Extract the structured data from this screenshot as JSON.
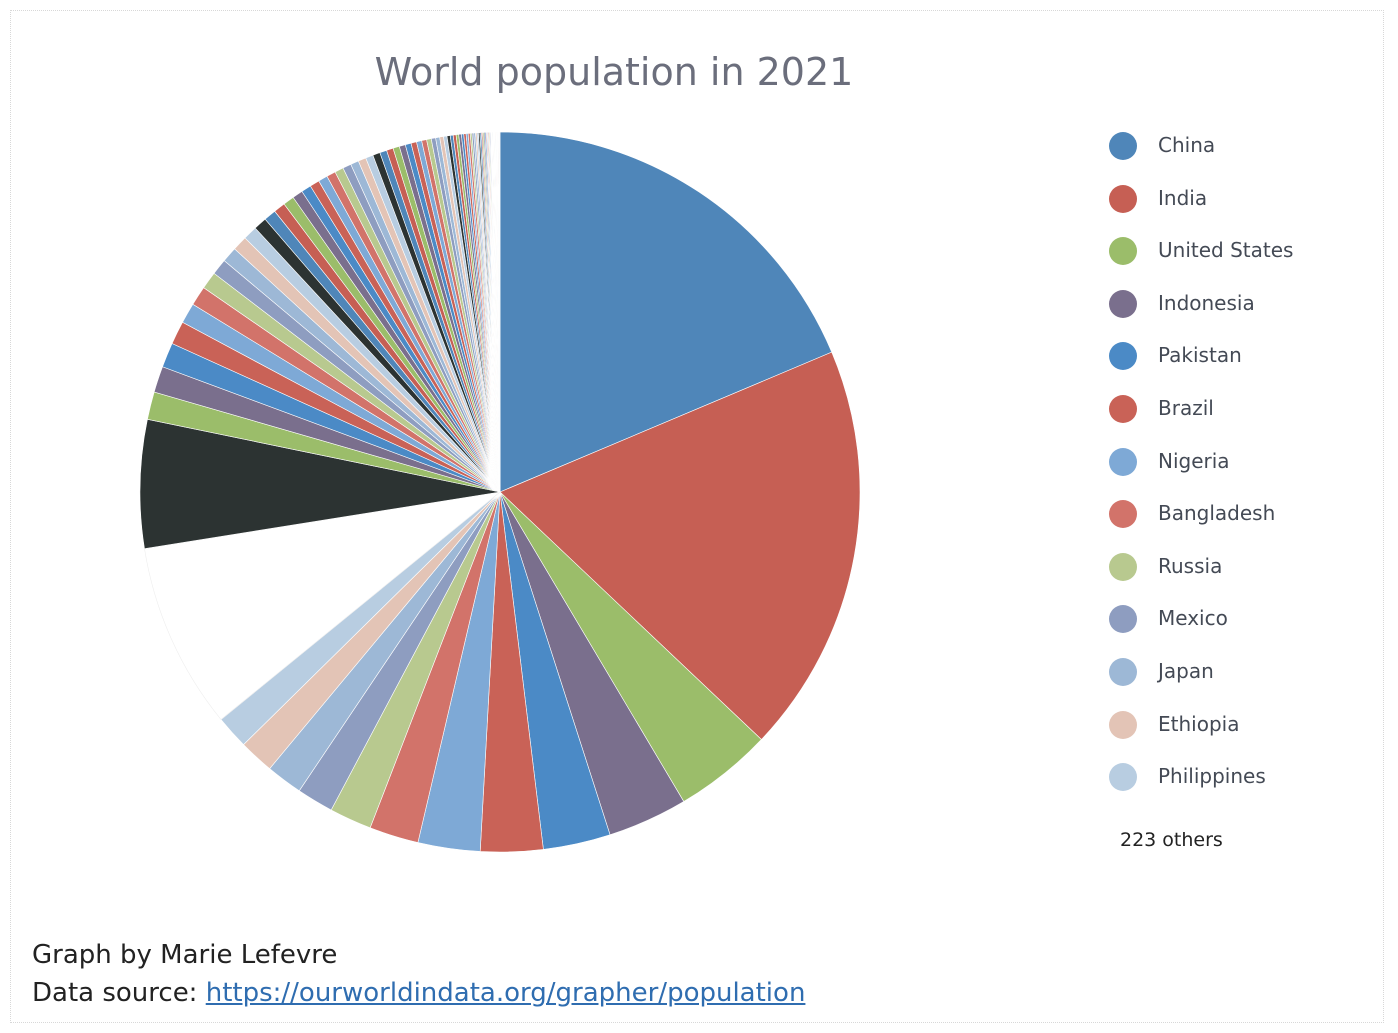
{
  "chart_data": {
    "type": "pie",
    "title": "World population in 2021",
    "legend": "right",
    "legend_more": "223 others",
    "slices": [
      {
        "label": "China",
        "value": 1426,
        "color": "#4f86b9"
      },
      {
        "label": "India",
        "value": 1408,
        "color": "#c65f54"
      },
      {
        "label": "United States",
        "value": 337,
        "color": "#9bbd6a"
      },
      {
        "label": "Indonesia",
        "value": 274,
        "color": "#7a6f8d"
      },
      {
        "label": "Pakistan",
        "value": 231,
        "color": "#4b8ac6"
      },
      {
        "label": "Brazil",
        "value": 214,
        "color": "#c96257"
      },
      {
        "label": "Nigeria",
        "value": 213,
        "color": "#7ea9d6"
      },
      {
        "label": "Bangladesh",
        "value": 169,
        "color": "#d2736a"
      },
      {
        "label": "Russia",
        "value": 145,
        "color": "#b8c98f"
      },
      {
        "label": "Mexico",
        "value": 126,
        "color": "#8e9dc0"
      },
      {
        "label": "Japan",
        "value": 125,
        "color": "#9db8d6"
      },
      {
        "label": "Ethiopia",
        "value": 120,
        "color": "#e3c4b6"
      },
      {
        "label": "Philippines",
        "value": 114,
        "color": "#b8cde1"
      }
    ]
  },
  "credit": {
    "line1": "Graph by Marie Lefevre",
    "line2_prefix": "Data source: ",
    "link": "https://ourworldindata.org/grapher/population"
  }
}
